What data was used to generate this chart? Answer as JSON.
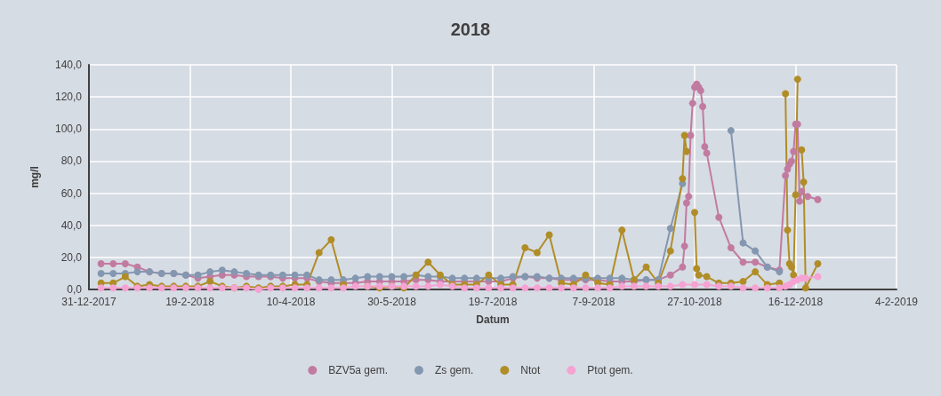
{
  "chart_data": {
    "type": "line",
    "title": "2018",
    "xlabel": "Datum",
    "ylabel": "mg/l",
    "xlim": [
      "2017-12-31",
      "2019-02-04"
    ],
    "xticks": [
      {
        "value": "2017-12-31",
        "label": "31-12-2017"
      },
      {
        "value": "2018-02-19",
        "label": "19-2-2018"
      },
      {
        "value": "2018-04-10",
        "label": "10-4-2018"
      },
      {
        "value": "2018-05-30",
        "label": "30-5-2018"
      },
      {
        "value": "2018-07-19",
        "label": "19-7-2018"
      },
      {
        "value": "2018-09-07",
        "label": "7-9-2018"
      },
      {
        "value": "2018-10-27",
        "label": "27-10-2018"
      },
      {
        "value": "2018-12-16",
        "label": "16-12-2018"
      },
      {
        "value": "2019-02-04",
        "label": "4-2-2019"
      }
    ],
    "ylim": [
      0,
      140
    ],
    "yticks": [
      {
        "value": 0,
        "label": "0,0"
      },
      {
        "value": 20,
        "label": "20,0"
      },
      {
        "value": 40,
        "label": "40,0"
      },
      {
        "value": 60,
        "label": "60,0"
      },
      {
        "value": 80,
        "label": "80,0"
      },
      {
        "value": 100,
        "label": "100,0"
      },
      {
        "value": 120,
        "label": "120,0"
      },
      {
        "value": 140,
        "label": "140,0"
      }
    ],
    "grid": true,
    "legend": "bottom",
    "marker": "circle",
    "line_style": "solid",
    "series": [
      {
        "name": "BZV5a gem.",
        "color": "#c27ba0",
        "x": [
          "2018-01-06",
          "2018-01-12",
          "2018-01-18",
          "2018-01-24",
          "2018-01-30",
          "2018-02-05",
          "2018-02-11",
          "2018-02-17",
          "2018-02-23",
          "2018-03-01",
          "2018-03-07",
          "2018-03-13",
          "2018-03-19",
          "2018-03-25",
          "2018-03-31",
          "2018-04-06",
          "2018-04-12",
          "2018-04-18",
          "2018-04-24",
          "2018-04-30",
          "2018-05-06",
          "2018-05-12",
          "2018-05-18",
          "2018-05-24",
          "2018-05-30",
          "2018-06-05",
          "2018-06-11",
          "2018-06-17",
          "2018-06-23",
          "2018-06-29",
          "2018-07-05",
          "2018-07-11",
          "2018-07-17",
          "2018-07-23",
          "2018-07-29",
          "2018-08-04",
          "2018-08-10",
          "2018-08-16",
          "2018-08-22",
          "2018-08-28",
          "2018-09-03",
          "2018-09-09",
          "2018-09-15",
          "2018-09-21",
          "2018-09-27",
          "2018-10-03",
          "2018-10-09",
          "2018-10-15",
          "2018-10-21",
          "2018-10-22",
          "2018-10-23",
          "2018-10-24",
          "2018-10-25",
          "2018-10-26",
          "2018-10-27",
          "2018-10-28",
          "2018-10-29",
          "2018-10-30",
          "2018-10-31",
          "2018-11-01",
          "2018-11-02",
          "2018-11-08",
          "2018-11-14",
          "2018-11-20",
          "2018-11-26",
          "2018-12-02",
          "2018-12-08",
          "2018-12-11",
          "2018-12-12",
          "2018-12-13",
          "2018-12-14",
          "2018-12-15",
          "2018-12-16",
          "2018-12-17",
          "2018-12-18",
          "2018-12-19",
          "2018-12-22",
          "2018-12-27"
        ],
        "values": [
          16,
          16,
          16,
          14,
          11,
          10,
          10,
          9,
          7,
          8,
          9,
          9,
          8,
          8,
          8,
          7,
          7,
          7,
          5,
          4,
          4,
          4,
          5,
          5,
          5,
          5,
          6,
          6,
          5,
          5,
          5,
          5,
          5,
          5,
          7,
          8,
          7,
          7,
          6,
          6,
          6,
          6,
          5,
          5,
          5,
          6,
          6,
          9,
          14,
          27,
          54,
          58,
          96,
          116,
          126,
          128,
          126,
          124,
          114,
          89,
          85,
          45,
          26,
          17,
          17,
          14,
          12,
          71,
          75,
          78,
          80,
          86,
          103,
          103,
          55,
          61,
          58,
          56
        ]
      },
      {
        "name": "Zs gem.",
        "color": "#8497b0",
        "x": [
          "2018-01-06",
          "2018-01-12",
          "2018-01-18",
          "2018-01-24",
          "2018-01-30",
          "2018-02-05",
          "2018-02-11",
          "2018-02-17",
          "2018-02-23",
          "2018-03-01",
          "2018-03-07",
          "2018-03-13",
          "2018-03-19",
          "2018-03-25",
          "2018-03-31",
          "2018-04-06",
          "2018-04-12",
          "2018-04-18",
          "2018-04-24",
          "2018-04-30",
          "2018-05-06",
          "2018-05-12",
          "2018-05-18",
          "2018-05-24",
          "2018-05-30",
          "2018-06-05",
          "2018-06-11",
          "2018-06-17",
          "2018-06-23",
          "2018-06-29",
          "2018-07-05",
          "2018-07-11",
          "2018-07-17",
          "2018-07-23",
          "2018-07-29",
          "2018-08-04",
          "2018-08-10",
          "2018-08-16",
          "2018-08-22",
          "2018-08-28",
          "2018-09-03",
          "2018-09-09",
          "2018-09-15",
          "2018-09-21",
          "2018-09-27",
          "2018-10-03",
          "2018-10-09",
          "2018-10-15",
          "2018-10-21",
          "2018-10-27",
          "2018-11-14",
          "2018-11-20",
          "2018-11-26",
          "2018-12-02",
          "2018-12-08"
        ],
        "values": [
          10,
          10,
          10,
          11,
          11,
          10,
          10,
          9,
          9,
          11,
          12,
          11,
          10,
          9,
          9,
          9,
          9,
          9,
          6,
          6,
          6,
          7,
          8,
          8,
          8,
          8,
          9,
          8,
          8,
          7,
          7,
          7,
          7,
          7,
          8,
          8,
          8,
          7,
          7,
          7,
          7,
          7,
          7,
          7,
          6,
          6,
          6,
          38,
          66,
          null,
          99,
          29,
          24,
          14,
          11
        ]
      },
      {
        "name": "Ntot",
        "color": "#b08d27",
        "x": [
          "2018-01-06",
          "2018-01-12",
          "2018-01-18",
          "2018-01-24",
          "2018-01-30",
          "2018-02-05",
          "2018-02-11",
          "2018-02-17",
          "2018-02-23",
          "2018-03-01",
          "2018-03-07",
          "2018-03-13",
          "2018-03-19",
          "2018-03-25",
          "2018-03-31",
          "2018-04-06",
          "2018-04-12",
          "2018-04-18",
          "2018-04-24",
          "2018-04-30",
          "2018-05-06",
          "2018-05-12",
          "2018-05-18",
          "2018-05-24",
          "2018-05-30",
          "2018-06-05",
          "2018-06-11",
          "2018-06-17",
          "2018-06-23",
          "2018-06-29",
          "2018-07-05",
          "2018-07-11",
          "2018-07-17",
          "2018-07-23",
          "2018-07-29",
          "2018-08-04",
          "2018-08-10",
          "2018-08-16",
          "2018-08-22",
          "2018-08-28",
          "2018-09-03",
          "2018-09-09",
          "2018-09-15",
          "2018-09-21",
          "2018-09-27",
          "2018-10-03",
          "2018-10-09",
          "2018-10-15",
          "2018-10-21",
          "2018-10-22",
          "2018-10-23",
          "2018-10-24",
          "2018-10-27",
          "2018-10-28",
          "2018-10-29",
          "2018-11-02",
          "2018-11-08",
          "2018-11-14",
          "2018-11-20",
          "2018-11-26",
          "2018-12-02",
          "2018-12-08",
          "2018-12-10",
          "2018-12-11",
          "2018-12-12",
          "2018-12-13",
          "2018-12-14",
          "2018-12-15",
          "2018-12-16",
          "2018-12-17",
          "2018-12-18",
          "2018-12-19",
          "2018-12-20",
          "2018-12-21",
          "2018-12-27"
        ],
        "values": [
          4,
          4,
          8,
          2,
          3,
          2,
          2,
          2,
          2,
          5,
          2,
          1,
          2,
          1,
          2,
          2,
          3,
          3,
          23,
          31,
          3,
          null,
          2,
          1,
          2,
          1,
          9,
          17,
          9,
          3,
          3,
          3,
          9,
          3,
          3,
          26,
          23,
          34,
          4,
          3,
          9,
          4,
          3,
          37,
          6,
          14,
          4,
          24,
          69,
          96,
          86,
          null,
          48,
          13,
          9,
          8,
          4,
          4,
          5,
          11,
          3,
          4,
          null,
          122,
          37,
          16,
          14,
          9,
          59,
          131,
          null,
          87,
          67,
          1,
          16
        ]
      },
      {
        "name": "Ptot gem.",
        "color": "#f5a3d3",
        "x": [
          "2018-01-06",
          "2018-01-12",
          "2018-01-18",
          "2018-01-24",
          "2018-01-30",
          "2018-02-05",
          "2018-02-11",
          "2018-02-17",
          "2018-02-23",
          "2018-03-01",
          "2018-03-07",
          "2018-03-13",
          "2018-03-19",
          "2018-03-25",
          "2018-03-31",
          "2018-04-06",
          "2018-04-12",
          "2018-04-18",
          "2018-04-24",
          "2018-04-30",
          "2018-05-06",
          "2018-05-12",
          "2018-05-18",
          "2018-05-24",
          "2018-05-30",
          "2018-06-05",
          "2018-06-11",
          "2018-06-17",
          "2018-06-23",
          "2018-06-29",
          "2018-07-05",
          "2018-07-11",
          "2018-07-17",
          "2018-07-23",
          "2018-07-29",
          "2018-08-04",
          "2018-08-10",
          "2018-08-16",
          "2018-08-22",
          "2018-08-28",
          "2018-09-03",
          "2018-09-09",
          "2018-09-15",
          "2018-09-21",
          "2018-09-27",
          "2018-10-03",
          "2018-10-09",
          "2018-10-15",
          "2018-10-21",
          "2018-10-27",
          "2018-11-02",
          "2018-11-08",
          "2018-11-14",
          "2018-11-20",
          "2018-11-26",
          "2018-12-02",
          "2018-12-08",
          "2018-12-11",
          "2018-12-13",
          "2018-12-15",
          "2018-12-17",
          "2018-12-19",
          "2018-12-21",
          "2018-12-27"
        ],
        "values": [
          1,
          1,
          1,
          1,
          1,
          1,
          1,
          1,
          1,
          1,
          1,
          1,
          1,
          0,
          1,
          1,
          1,
          1,
          1,
          1,
          1,
          2,
          2,
          2,
          2,
          2,
          2,
          2,
          3,
          2,
          1,
          1,
          1,
          1,
          1,
          1,
          1,
          1,
          1,
          1,
          1,
          1,
          1,
          2,
          2,
          2,
          2,
          2,
          3,
          3,
          3,
          2,
          2,
          1,
          1,
          1,
          1,
          2,
          3,
          5,
          6,
          7,
          7,
          8
        ]
      }
    ]
  }
}
